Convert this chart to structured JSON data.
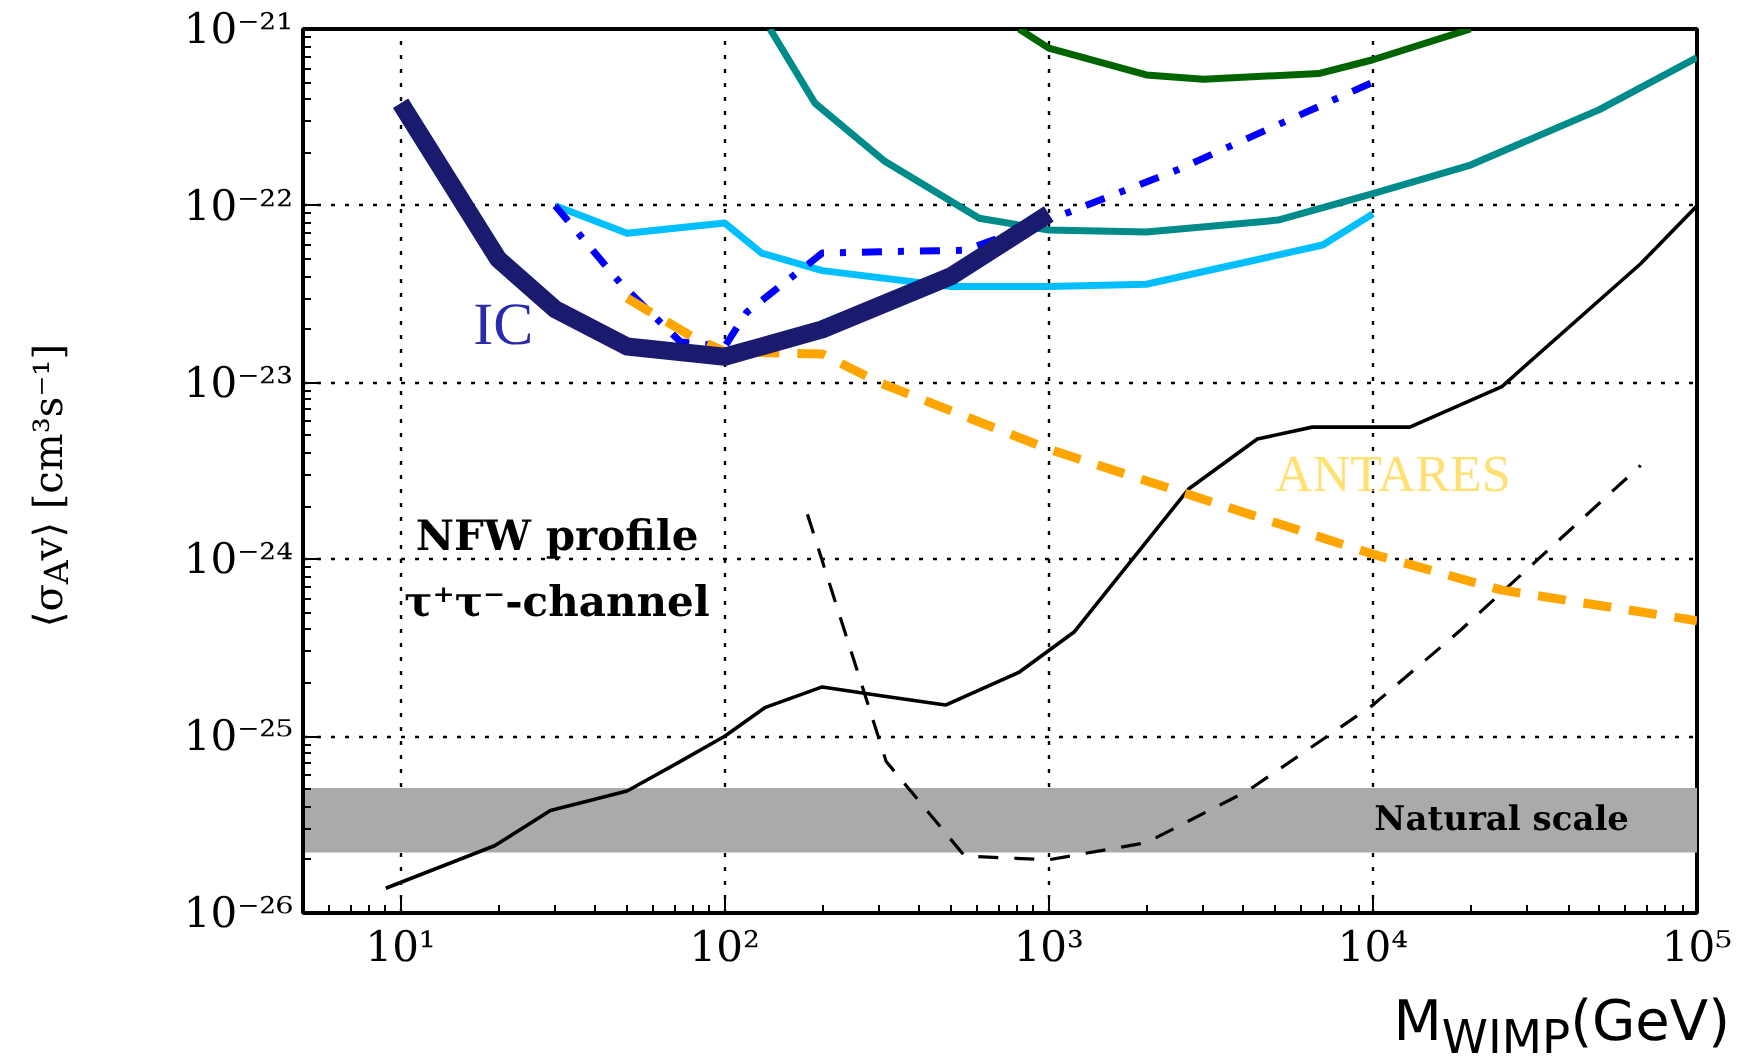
{
  "chart_data": {
    "type": "line",
    "xlabel": "M$_{WIMP}$(GeV)",
    "ylabel": "⟨σ$_{A}$v⟩ [cm³s⁻¹]",
    "log": "xy",
    "grid": true,
    "legend": false,
    "xlim": [
      5,
      100000
    ],
    "xticks": [
      {
        "value": 10,
        "label": "10¹"
      },
      {
        "value": 100,
        "label": "10²"
      },
      {
        "value": 1000,
        "label": "10³"
      },
      {
        "value": 10000,
        "label": "10⁴"
      },
      {
        "value": 100000,
        "label": "10⁵"
      }
    ],
    "ylim": [
      1e-26,
      1e-21
    ],
    "yticks": [
      {
        "value": 1e-26,
        "label": "10⁻²⁶"
      },
      {
        "value": 1e-25,
        "label": "10⁻²⁵"
      },
      {
        "value": 1e-24,
        "label": "10⁻²⁴"
      },
      {
        "value": 1e-23,
        "label": "10⁻²³"
      },
      {
        "value": 1e-22,
        "label": "10⁻²²"
      },
      {
        "value": 1e-21,
        "label": "10⁻²¹"
      }
    ],
    "series": [
      {
        "color": "#000000",
        "line_style": "solid",
        "x": [
          9,
          19.5,
          29,
          50,
          73,
          100,
          133,
          200,
          300,
          480,
          810,
          1200,
          2700,
          4400,
          6500,
          13000,
          25000,
          67000,
          100000
        ],
        "values": [
          1.38e-26,
          2.4e-26,
          3.8e-26,
          4.9e-26,
          7.2e-26,
          1e-25,
          1.45e-25,
          1.9e-25,
          1.7e-25,
          1.5e-25,
          2.3e-25,
          3.9e-25,
          2.5e-24,
          4.8e-24,
          5.6e-24,
          5.6e-24,
          9.5e-24,
          4.7e-23,
          1e-22
        ]
      },
      {
        "color": "#000000",
        "line_style": "dashed",
        "x": [
          180,
          315,
          550,
          1000,
          2000,
          4100,
          10000,
          18700,
          67000
        ],
        "values": [
          1.8e-24,
          7.2e-26,
          2.1e-26,
          2e-26,
          2.5e-26,
          4.9e-26,
          1.5e-25,
          4e-25,
          3.4e-24
        ]
      },
      {
        "color": "#008b8b",
        "line_style": "solid",
        "x": [
          138,
          190,
          310,
          610,
          1000,
          2000,
          5100,
          10000,
          20000,
          50000,
          100000
        ],
        "values": [
          1e-21,
          3.8e-22,
          1.8e-22,
          8.5e-23,
          7.3e-23,
          7.1e-23,
          8.3e-23,
          1.17e-22,
          1.7e-22,
          3.5e-22,
          6.9e-22
        ]
      },
      {
        "color": "#006400",
        "line_style": "solid",
        "x": [
          810,
          1000,
          2000,
          3000,
          6800,
          10000,
          20000
        ],
        "values": [
          1e-21,
          7.8e-22,
          5.5e-22,
          5.2e-22,
          5.6e-22,
          6.7e-22,
          1e-21
        ]
      },
      {
        "color": "#00bfff",
        "line_style": "solid",
        "x": [
          30,
          50,
          100,
          130,
          200,
          500,
          1000,
          2000,
          7000,
          10000
        ],
        "values": [
          1e-22,
          7e-23,
          8e-23,
          5.4e-23,
          4.3e-23,
          3.5e-23,
          3.5e-23,
          3.6e-23,
          6e-23,
          9e-23
        ]
      },
      {
        "color": "#0000ff",
        "line_style": "dashdot",
        "x": [
          30,
          48,
          73,
          100,
          117,
          200,
          300,
          550,
          1000,
          2500,
          10000
        ],
        "values": [
          1e-22,
          3.6e-23,
          1.7e-23,
          1.6e-23,
          2.5e-23,
          5.4e-23,
          5.5e-23,
          5.6e-23,
          8.3e-23,
          1.6e-22,
          5e-22
        ]
      },
      {
        "name": "ANTARES",
        "color": "#ffa500",
        "line_style": "dashed",
        "x": [
          50,
          80,
          100,
          200,
          300,
          1000,
          10000,
          25000,
          100000
        ],
        "values": [
          3e-23,
          1.8e-23,
          1.5e-23,
          1.45e-23,
          1e-23,
          4.2e-24,
          1.07e-24,
          6.7e-25,
          4.5e-25
        ]
      },
      {
        "name": "IC",
        "color": "#1a1a6e",
        "line_style": "solid",
        "x": [
          10,
          20,
          30,
          50,
          100,
          200,
          500,
          1000
        ],
        "values": [
          3.8e-22,
          5e-23,
          2.6e-23,
          1.6e-23,
          1.4e-23,
          2e-23,
          4e-23,
          9e-23
        ]
      }
    ],
    "bands": [
      {
        "axis": "y",
        "from": 2.2e-26,
        "to": 5.1e-26,
        "label": "Natural scale",
        "color": "#aaaaaa"
      }
    ],
    "annotations": [
      "NFW profile",
      "τ⁺τ⁻-channel"
    ]
  }
}
